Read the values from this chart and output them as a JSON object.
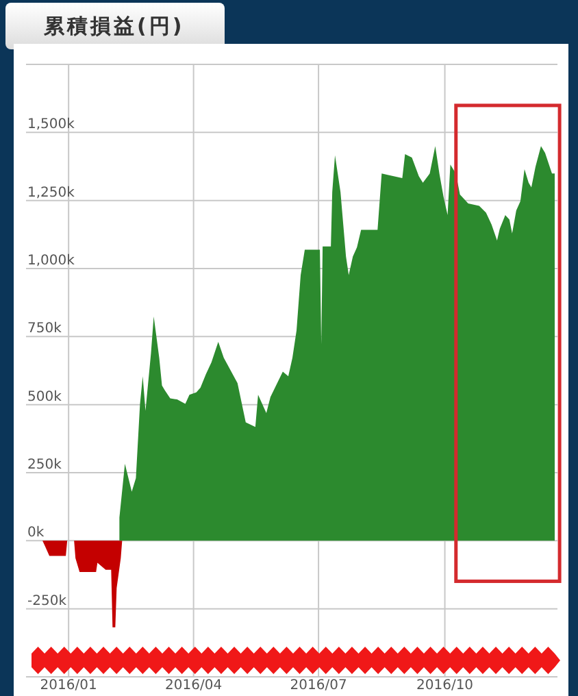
{
  "chart_data": {
    "type": "area",
    "title": "累積損益(円)",
    "xlim": [
      "2015-12-01",
      "2016-12-22"
    ],
    "xticks": [
      {
        "value": "2016-01-01",
        "label": "2016/01"
      },
      {
        "value": "2016-04-01",
        "label": "2016/04"
      },
      {
        "value": "2016-07-01",
        "label": "2016/07"
      },
      {
        "value": "2016-10-01",
        "label": "2016/10"
      }
    ],
    "ylim": [
      -500,
      1750
    ],
    "yticks": [
      {
        "value": -500,
        "label": null
      },
      {
        "value": -250,
        "label": "-250k"
      },
      {
        "value": 0,
        "label": "0k"
      },
      {
        "value": 250,
        "label": "250k"
      },
      {
        "value": 500,
        "label": "500k"
      },
      {
        "value": 750,
        "label": "750k"
      },
      {
        "value": 1000,
        "label": "1,000k"
      },
      {
        "value": 1250,
        "label": "1,250k"
      },
      {
        "value": 1500,
        "label": "1,500k"
      },
      {
        "value": 1750,
        "label": null
      }
    ],
    "grid": true,
    "series": [
      {
        "color": "#c40000",
        "x": [
          "2015-12-01",
          "2015-12-13",
          "2015-12-15",
          "2015-12-18",
          "2015-12-30",
          "2015-12-31",
          "2016-01-05",
          "2016-01-06",
          "2016-01-09",
          "2016-01-21",
          "2016-01-22",
          "2016-01-28",
          "2016-02-01",
          "2016-02-02",
          "2016-02-04",
          "2016-02-05",
          "2016-02-08",
          "2016-02-09"
        ],
        "values": [
          0,
          0,
          -22,
          -56,
          -56,
          0,
          0,
          -64,
          -115,
          -115,
          -81,
          -107,
          -107,
          -318,
          -318,
          -174,
          -64,
          0
        ]
      },
      {
        "color": "#2c8a2e",
        "x": [
          "2016-02-07",
          "2016-02-11",
          "2016-02-16",
          "2016-02-19",
          "2016-02-22",
          "2016-02-24",
          "2016-02-26",
          "2016-03-01",
          "2016-03-03",
          "2016-03-07",
          "2016-03-09",
          "2016-03-11",
          "2016-03-15",
          "2016-03-20",
          "2016-03-26",
          "2016-03-29",
          "2016-04-03",
          "2016-04-06",
          "2016-04-10",
          "2016-04-14",
          "2016-04-19",
          "2016-04-23",
          "2016-05-03",
          "2016-05-09",
          "2016-05-16",
          "2016-05-18",
          "2016-05-24",
          "2016-05-27",
          "2016-06-05",
          "2016-06-09",
          "2016-06-12",
          "2016-06-15",
          "2016-06-18",
          "2016-06-21",
          "2016-07-02",
          "2016-07-03",
          "2016-07-04",
          "2016-07-10",
          "2016-07-11",
          "2016-07-13",
          "2016-07-17",
          "2016-07-21",
          "2016-07-23",
          "2016-07-26",
          "2016-07-29",
          "2016-08-01",
          "2016-08-13",
          "2016-08-16",
          "2016-08-31",
          "2016-09-02",
          "2016-09-07",
          "2016-09-12",
          "2016-09-15",
          "2016-09-20",
          "2016-09-24",
          "2016-09-27",
          "2016-09-30",
          "2016-10-03",
          "2016-10-05",
          "2016-10-09",
          "2016-10-12",
          "2016-10-18",
          "2016-10-26",
          "2016-10-31",
          "2016-11-04",
          "2016-11-08",
          "2016-11-10",
          "2016-11-14",
          "2016-11-17",
          "2016-11-19",
          "2016-11-22",
          "2016-11-25",
          "2016-11-28",
          "2016-12-01",
          "2016-12-03",
          "2016-12-06",
          "2016-12-10",
          "2016-12-13",
          "2016-12-18",
          "2016-12-20"
        ],
        "values": [
          85,
          283,
          180,
          230,
          502,
          604,
          477,
          689,
          824,
          672,
          570,
          553,
          523,
          519,
          503,
          536,
          545,
          562,
          612,
          655,
          731,
          672,
          579,
          435,
          418,
          536,
          469,
          528,
          621,
          604,
          672,
          773,
          976,
          1069,
          1069,
          722,
          1081,
          1081,
          1281,
          1416,
          1281,
          1044,
          976,
          1044,
          1078,
          1142,
          1142,
          1349,
          1332,
          1420,
          1408,
          1340,
          1315,
          1349,
          1450,
          1349,
          1264,
          1196,
          1382,
          1349,
          1272,
          1239,
          1230,
          1205,
          1162,
          1103,
          1146,
          1196,
          1180,
          1129,
          1213,
          1247,
          1365,
          1315,
          1298,
          1374,
          1450,
          1425,
          1349,
          1349
        ]
      }
    ]
  }
}
